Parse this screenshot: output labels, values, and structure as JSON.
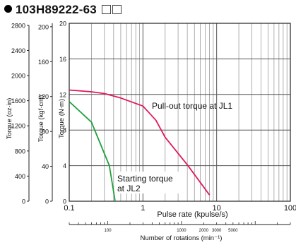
{
  "title": "103H89222-63",
  "chart_data": {
    "type": "line",
    "xlabel": "Pulse rate (kpulse/s)",
    "xscale": "log",
    "xlim": [
      0.1,
      100
    ],
    "x_ticks": [
      "0.1",
      "1",
      "10",
      "100"
    ],
    "ylabel": "Torque (N·m)",
    "ylim": [
      0,
      20
    ],
    "y_ticks": [
      "0",
      "4",
      "8",
      "12",
      "16",
      "20"
    ],
    "y_ticks_kgfcm": [
      "0",
      "40",
      "80",
      "120",
      "160",
      "200"
    ],
    "y_ticks_ozin": [
      "0",
      "400",
      "800",
      "1200",
      "1600",
      "2000",
      "2400",
      "2800"
    ],
    "ylabel_kgfcm": "Torque (kgf·cm)",
    "ylabel_ozin": "Torque (oz·in)",
    "secondary_xlabel": "Number of rotations (min⁻¹)",
    "secondary_x_ticks": [
      "100",
      "1000",
      "2000",
      "3000",
      "5000"
    ],
    "grid": true,
    "series": [
      {
        "name": "Pull-out torque at JL1",
        "label_lines": [
          "Pull-out torque at JL1"
        ],
        "color": "#e0185a",
        "x": [
          0.1,
          0.2,
          0.3,
          0.5,
          1,
          1.5,
          2,
          4,
          8
        ],
        "y": [
          12.5,
          12.3,
          12.1,
          11.6,
          10.7,
          9.1,
          7.2,
          4.1,
          0.7
        ]
      },
      {
        "name": "Starting torque at JL2",
        "label_lines": [
          "Starting torque",
          "at JL2"
        ],
        "color": "#1fa03c",
        "x": [
          0.1,
          0.2,
          0.35,
          0.42
        ],
        "y": [
          11.2,
          8.9,
          4.0,
          0
        ]
      }
    ]
  }
}
